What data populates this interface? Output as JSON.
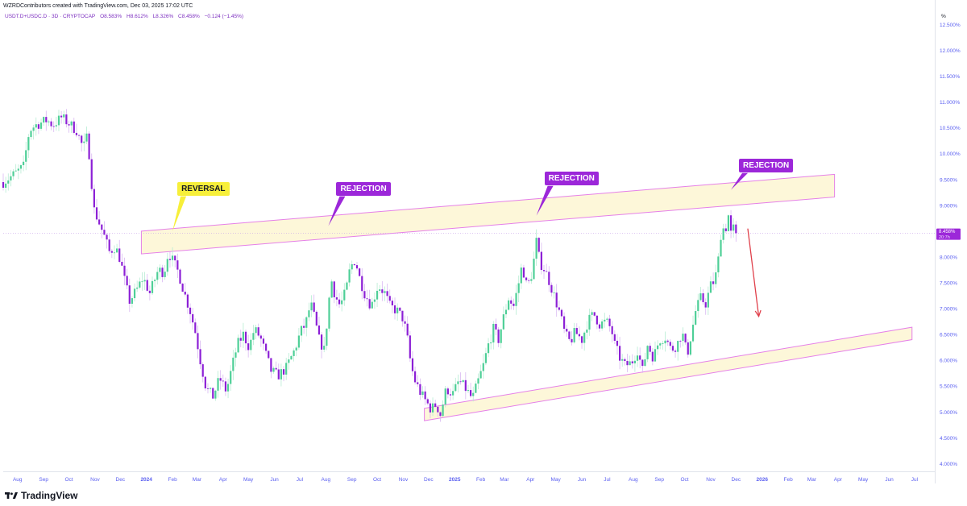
{
  "header": {
    "credit": "WZRDContributors created with TradingView.com, Dec 03, 2025 17:02 UTC",
    "symbol": "USDT.D+USDC.D · 3D · CRYPTOCAP",
    "open": "O8.583%",
    "high": "H8.612%",
    "low": "L8.326%",
    "close": "C8.458%",
    "change": "−0.124 (−1.45%)"
  },
  "footer": {
    "brand": "TradingView"
  },
  "price_label": {
    "value": "8.458%",
    "countdown": "20:7h"
  },
  "annotations": [
    {
      "text": "REVERSAL",
      "style": "yellow"
    },
    {
      "text": "REJECTION",
      "style": "purple"
    },
    {
      "text": "REJECTION",
      "style": "purple"
    },
    {
      "text": "REJECTION",
      "style": "purple"
    }
  ],
  "colors": {
    "up": "#4ecf97",
    "down": "#8c1fd6",
    "accent": "#9c27d9",
    "arrow": "#e0404b",
    "channel": "#e580e8"
  },
  "chart_data": {
    "type": "candlestick",
    "y_axis_unit_label": "%",
    "y_ticks": [
      "12.500%",
      "12.000%",
      "11.500%",
      "11.000%",
      "10.500%",
      "10.000%",
      "9.500%",
      "9.000%",
      "8.500%",
      "8.000%",
      "7.500%",
      "7.000%",
      "6.500%",
      "6.000%",
      "5.500%",
      "5.000%",
      "4.500%",
      "4.000%"
    ],
    "y_tick_values": [
      12.5,
      12,
      11.5,
      11,
      10.5,
      10,
      9.5,
      9,
      8.5,
      8,
      7.5,
      7,
      6.5,
      6,
      5.5,
      5,
      4.5,
      4
    ],
    "ylim": [
      3.85,
      12.85
    ],
    "x_ticks": [
      {
        "label": "Aug",
        "date": "2023-08-01",
        "bold": false
      },
      {
        "label": "Sep",
        "date": "2023-09-01",
        "bold": false
      },
      {
        "label": "Oct",
        "date": "2023-10-01",
        "bold": false
      },
      {
        "label": "Nov",
        "date": "2023-11-01",
        "bold": false
      },
      {
        "label": "Dec",
        "date": "2023-12-01",
        "bold": false
      },
      {
        "label": "2024",
        "date": "2024-01-01",
        "bold": true
      },
      {
        "label": "Feb",
        "date": "2024-02-01",
        "bold": false
      },
      {
        "label": "Mar",
        "date": "2024-03-01",
        "bold": false
      },
      {
        "label": "Apr",
        "date": "2024-04-01",
        "bold": false
      },
      {
        "label": "May",
        "date": "2024-05-01",
        "bold": false
      },
      {
        "label": "Jun",
        "date": "2024-06-01",
        "bold": false
      },
      {
        "label": "Jul",
        "date": "2024-07-01",
        "bold": false
      },
      {
        "label": "Aug",
        "date": "2024-08-01",
        "bold": false
      },
      {
        "label": "Sep",
        "date": "2024-09-01",
        "bold": false
      },
      {
        "label": "Oct",
        "date": "2024-10-01",
        "bold": false
      },
      {
        "label": "Nov",
        "date": "2024-11-01",
        "bold": false
      },
      {
        "label": "Dec",
        "date": "2024-12-01",
        "bold": false
      },
      {
        "label": "2025",
        "date": "2025-01-01",
        "bold": true
      },
      {
        "label": "Feb",
        "date": "2025-02-01",
        "bold": false
      },
      {
        "label": "Mar",
        "date": "2025-03-01",
        "bold": false
      },
      {
        "label": "Apr",
        "date": "2025-04-01",
        "bold": false
      },
      {
        "label": "May",
        "date": "2025-05-01",
        "bold": false
      },
      {
        "label": "Jun",
        "date": "2025-06-01",
        "bold": false
      },
      {
        "label": "Jul",
        "date": "2025-07-01",
        "bold": false
      },
      {
        "label": "Aug",
        "date": "2025-08-01",
        "bold": false
      },
      {
        "label": "Sep",
        "date": "2025-09-01",
        "bold": false
      },
      {
        "label": "Oct",
        "date": "2025-10-01",
        "bold": false
      },
      {
        "label": "Nov",
        "date": "2025-11-01",
        "bold": false
      },
      {
        "label": "Dec",
        "date": "2025-12-01",
        "bold": false
      },
      {
        "label": "2026",
        "date": "2026-01-01",
        "bold": true
      },
      {
        "label": "Feb",
        "date": "2026-02-01",
        "bold": false
      },
      {
        "label": "Mar",
        "date": "2026-03-01",
        "bold": false
      },
      {
        "label": "Apr",
        "date": "2026-04-01",
        "bold": false
      },
      {
        "label": "May",
        "date": "2026-05-01",
        "bold": false
      },
      {
        "label": "Jun",
        "date": "2026-06-01",
        "bold": false
      },
      {
        "label": "Jul",
        "date": "2026-07-01",
        "bold": false
      }
    ],
    "xlim": [
      "2023-07-15",
      "2026-07-25"
    ],
    "close_path": [
      [
        "2023-07-15",
        9.45
      ],
      [
        "2023-07-28",
        9.6
      ],
      [
        "2023-08-08",
        9.75
      ],
      [
        "2023-08-15",
        10.45
      ],
      [
        "2023-08-22",
        10.55
      ],
      [
        "2023-09-05",
        10.65
      ],
      [
        "2023-09-12",
        10.55
      ],
      [
        "2023-09-22",
        10.7
      ],
      [
        "2023-09-30",
        10.6
      ],
      [
        "2023-10-10",
        10.45
      ],
      [
        "2023-10-18",
        10.1
      ],
      [
        "2023-10-22",
        10.3
      ],
      [
        "2023-10-26",
        9.9
      ],
      [
        "2023-10-30",
        8.95
      ],
      [
        "2023-11-05",
        8.7
      ],
      [
        "2023-11-12",
        8.4
      ],
      [
        "2023-11-18",
        8.1
      ],
      [
        "2023-11-25",
        8.2
      ],
      [
        "2023-12-01",
        7.95
      ],
      [
        "2023-12-06",
        7.55
      ],
      [
        "2023-12-12",
        7.15
      ],
      [
        "2023-12-20",
        7.35
      ],
      [
        "2023-12-28",
        7.6
      ],
      [
        "2024-01-05",
        7.3
      ],
      [
        "2024-01-15",
        7.75
      ],
      [
        "2024-01-22",
        7.7
      ],
      [
        "2024-01-27",
        8.1
      ],
      [
        "2024-02-02",
        7.9
      ],
      [
        "2024-02-08",
        7.7
      ],
      [
        "2024-02-15",
        7.3
      ],
      [
        "2024-02-22",
        6.95
      ],
      [
        "2024-02-28",
        6.55
      ],
      [
        "2024-03-05",
        6.0
      ],
      [
        "2024-03-12",
        5.45
      ],
      [
        "2024-03-20",
        5.3
      ],
      [
        "2024-03-28",
        5.65
      ],
      [
        "2024-04-05",
        5.4
      ],
      [
        "2024-04-12",
        5.9
      ],
      [
        "2024-04-18",
        6.3
      ],
      [
        "2024-04-25",
        6.5
      ],
      [
        "2024-05-02",
        6.25
      ],
      [
        "2024-05-08",
        6.6
      ],
      [
        "2024-05-15",
        6.45
      ],
      [
        "2024-05-22",
        6.1
      ],
      [
        "2024-05-28",
        5.8
      ],
      [
        "2024-06-05",
        5.7
      ],
      [
        "2024-06-15",
        5.85
      ],
      [
        "2024-06-25",
        6.2
      ],
      [
        "2024-07-02",
        6.55
      ],
      [
        "2024-07-08",
        6.7
      ],
      [
        "2024-07-14",
        7.1
      ],
      [
        "2024-07-18",
        6.85
      ],
      [
        "2024-07-24",
        6.4
      ],
      [
        "2024-07-30",
        6.2
      ],
      [
        "2024-08-04",
        7.0
      ],
      [
        "2024-08-07",
        7.6
      ],
      [
        "2024-08-12",
        7.25
      ],
      [
        "2024-08-18",
        7.05
      ],
      [
        "2024-08-25",
        7.35
      ],
      [
        "2024-08-30",
        7.8
      ],
      [
        "2024-09-05",
        7.95
      ],
      [
        "2024-09-10",
        7.6
      ],
      [
        "2024-09-16",
        7.3
      ],
      [
        "2024-09-24",
        7.05
      ],
      [
        "2024-10-02",
        7.45
      ],
      [
        "2024-10-10",
        7.3
      ],
      [
        "2024-10-16",
        7.05
      ],
      [
        "2024-10-25",
        6.95
      ],
      [
        "2024-11-01",
        6.8
      ],
      [
        "2024-11-06",
        6.4
      ],
      [
        "2024-11-10",
        5.9
      ],
      [
        "2024-11-15",
        5.6
      ],
      [
        "2024-11-22",
        5.35
      ],
      [
        "2024-11-28",
        5.2
      ],
      [
        "2024-12-04",
        5.05
      ],
      [
        "2024-12-10",
        5.15
      ],
      [
        "2024-12-15",
        4.95
      ],
      [
        "2024-12-22",
        5.45
      ],
      [
        "2024-12-30",
        5.35
      ],
      [
        "2025-01-06",
        5.6
      ],
      [
        "2025-01-14",
        5.45
      ],
      [
        "2025-01-22",
        5.25
      ],
      [
        "2025-01-30",
        5.65
      ],
      [
        "2025-02-04",
        5.9
      ],
      [
        "2025-02-10",
        6.3
      ],
      [
        "2025-02-16",
        6.6
      ],
      [
        "2025-02-22",
        6.4
      ],
      [
        "2025-03-01",
        6.9
      ],
      [
        "2025-03-06",
        7.2
      ],
      [
        "2025-03-12",
        7.05
      ],
      [
        "2025-03-18",
        7.5
      ],
      [
        "2025-03-22",
        7.85
      ],
      [
        "2025-03-28",
        7.4
      ],
      [
        "2025-04-03",
        7.7
      ],
      [
        "2025-04-08",
        8.3
      ],
      [
        "2025-04-12",
        7.9
      ],
      [
        "2025-04-18",
        7.75
      ],
      [
        "2025-04-24",
        7.5
      ],
      [
        "2025-04-30",
        7.2
      ],
      [
        "2025-05-06",
        6.9
      ],
      [
        "2025-05-12",
        6.5
      ],
      [
        "2025-05-18",
        6.35
      ],
      [
        "2025-05-24",
        6.55
      ],
      [
        "2025-06-01",
        6.4
      ],
      [
        "2025-06-08",
        6.75
      ],
      [
        "2025-06-15",
        6.9
      ],
      [
        "2025-06-22",
        6.7
      ],
      [
        "2025-06-30",
        6.75
      ],
      [
        "2025-07-06",
        6.6
      ],
      [
        "2025-07-10",
        6.3
      ],
      [
        "2025-07-16",
        6.05
      ],
      [
        "2025-07-22",
        5.9
      ],
      [
        "2025-07-30",
        5.95
      ],
      [
        "2025-08-06",
        6.2
      ],
      [
        "2025-08-12",
        5.8
      ],
      [
        "2025-08-18",
        6.3
      ],
      [
        "2025-08-25",
        6.05
      ],
      [
        "2025-09-01",
        6.4
      ],
      [
        "2025-09-08",
        6.45
      ],
      [
        "2025-09-15",
        6.2
      ],
      [
        "2025-09-22",
        6.3
      ],
      [
        "2025-09-28",
        6.55
      ],
      [
        "2025-10-04",
        6.1
      ],
      [
        "2025-10-10",
        6.6
      ],
      [
        "2025-10-14",
        6.95
      ],
      [
        "2025-10-20",
        7.2
      ],
      [
        "2025-10-26",
        7.1
      ],
      [
        "2025-11-01",
        7.45
      ],
      [
        "2025-11-06",
        7.55
      ],
      [
        "2025-11-10",
        7.95
      ],
      [
        "2025-11-14",
        8.6
      ],
      [
        "2025-11-18",
        8.5
      ],
      [
        "2025-11-22",
        8.8
      ],
      [
        "2025-11-25",
        8.45
      ],
      [
        "2025-11-28",
        8.55
      ],
      [
        "2025-12-02",
        8.46
      ]
    ],
    "last_close": 8.458,
    "upper_channel": [
      [
        "2023-12-26",
        8.28
      ],
      [
        "2026-03-28",
        9.38
      ]
    ],
    "upper_channel_band": 0.22,
    "lower_channel": [
      [
        "2024-11-26",
        4.95
      ],
      [
        "2026-06-28",
        6.52
      ]
    ],
    "lower_channel_band": 0.12,
    "projection_arrow": [
      [
        "2025-12-15",
        8.55
      ],
      [
        "2025-12-28",
        6.85
      ]
    ],
    "annotation_points": [
      {
        "date": "2024-02-01",
        "value": 8.5,
        "label_value": 9.3
      },
      {
        "date": "2024-08-04",
        "value": 8.6,
        "label_value": 9.3
      },
      {
        "date": "2025-04-08",
        "value": 8.8,
        "label_value": 9.5
      },
      {
        "date": "2025-11-25",
        "value": 9.3,
        "label_value": 9.75
      }
    ]
  }
}
